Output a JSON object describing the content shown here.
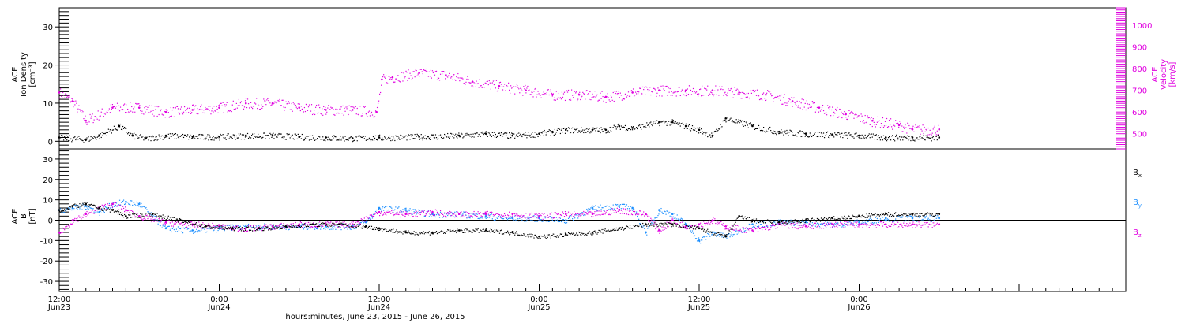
{
  "chart_data": [
    {
      "type": "scatter",
      "panel": "top",
      "ylabel_lines": [
        "ACE",
        "Ion Density",
        "[cm⁻³]"
      ],
      "ylabel_right_lines": [
        "ACE",
        "Velocity",
        "[km/s]"
      ],
      "ylim": [
        -2,
        35
      ],
      "yticks": [
        0,
        10,
        20,
        30
      ],
      "y2lim": [
        430,
        1080
      ],
      "y2ticks": [
        500,
        600,
        700,
        800,
        900,
        1000
      ],
      "series": [
        {
          "axis": "left",
          "color": "#000000",
          "x": [
            0,
            2,
            3,
            4.5,
            5.5,
            6.5,
            8,
            10,
            12,
            14,
            16,
            18,
            20,
            22,
            24,
            27,
            30,
            32,
            34,
            36,
            37,
            38,
            40,
            41,
            42,
            43,
            45,
            46,
            47,
            48,
            49,
            50,
            52,
            54,
            56,
            58,
            60,
            62,
            64,
            66
          ],
          "y": [
            1,
            0.5,
            1.5,
            4,
            1.5,
            0.8,
            1.5,
            1.2,
            1.2,
            1.5,
            1.5,
            1.2,
            1.0,
            0.8,
            1.0,
            1.2,
            1.5,
            2,
            1.5,
            2,
            2.5,
            3,
            3,
            3,
            4,
            3.5,
            5,
            5,
            4,
            3,
            1.5,
            6,
            4,
            2.5,
            2,
            1.8,
            1.5,
            1,
            1,
            1
          ]
        },
        {
          "axis": "right",
          "color": "#e000e0",
          "x": [
            0,
            1,
            2,
            4,
            6,
            8,
            10,
            12,
            14,
            16,
            18,
            20,
            22,
            23.8,
            24.2,
            25,
            27,
            29,
            31,
            33,
            35,
            37,
            39,
            41,
            43,
            45,
            47,
            49,
            51,
            53,
            55,
            57,
            59,
            61,
            63,
            64,
            66
          ],
          "y": [
            690,
            650,
            560,
            620,
            620,
            600,
            610,
            620,
            640,
            640,
            620,
            610,
            610,
            600,
            750,
            760,
            780,
            770,
            740,
            720,
            700,
            680,
            680,
            670,
            690,
            700,
            700,
            700,
            690,
            680,
            650,
            620,
            590,
            560,
            540,
            520,
            520
          ]
        }
      ]
    },
    {
      "type": "scatter",
      "panel": "bottom",
      "ylabel_lines": [
        "ACE",
        "B",
        "[nT]"
      ],
      "ylim": [
        -35,
        35
      ],
      "yticks": [
        -30,
        -20,
        -10,
        0,
        10,
        20,
        30
      ],
      "legend": [
        {
          "name": "B",
          "sub": "x",
          "color": "#000000"
        },
        {
          "name": "B",
          "sub": "y",
          "color": "#1e90ff"
        },
        {
          "name": "B",
          "sub": "z",
          "color": "#e000e0"
        }
      ],
      "series": [
        {
          "name": "Bx",
          "color": "#000000",
          "x": [
            0,
            1,
            2,
            3,
            4,
            5,
            7,
            9,
            11,
            13,
            15,
            17,
            19,
            21,
            23,
            24,
            26,
            28,
            30,
            32,
            34,
            36,
            38,
            40,
            42,
            44,
            46,
            48,
            50,
            51,
            52,
            54,
            56,
            58,
            60,
            62,
            64,
            66
          ],
          "y": [
            5,
            7,
            8,
            6,
            5,
            2,
            3,
            0,
            -3,
            -4,
            -4,
            -3,
            -2,
            -2,
            -3,
            -4,
            -6,
            -6,
            -5,
            -5,
            -6,
            -8,
            -7,
            -6,
            -4,
            -2,
            -2,
            -4,
            -8,
            2,
            0,
            -1,
            0,
            1,
            2,
            3,
            3,
            3
          ]
        },
        {
          "name": "By",
          "color": "#1e90ff",
          "x": [
            0,
            1,
            2,
            3,
            4,
            5,
            6,
            8,
            10,
            12,
            14,
            16,
            18,
            20,
            22,
            23,
            24,
            26,
            28,
            30,
            32,
            34,
            36,
            38,
            40,
            42,
            43,
            44,
            45,
            46,
            47,
            48,
            49,
            50,
            52,
            54,
            56,
            58,
            60,
            62,
            64,
            66
          ],
          "y": [
            5,
            6,
            7,
            4,
            8,
            9,
            8,
            -4,
            -5,
            -4,
            -3,
            -3,
            -3,
            -3,
            -3,
            -1,
            6,
            5,
            3,
            3,
            2,
            1,
            1,
            0,
            6,
            7,
            6,
            -6,
            5,
            3,
            -2,
            -10,
            -6,
            -8,
            -2,
            -1,
            -1,
            -2,
            -1,
            1,
            1,
            1
          ]
        },
        {
          "name": "Bz",
          "color": "#e000e0",
          "x": [
            0,
            1,
            2,
            3,
            4,
            5,
            6,
            8,
            10,
            12,
            14,
            16,
            18,
            20,
            22,
            24,
            26,
            28,
            30,
            32,
            34,
            36,
            38,
            40,
            42,
            44,
            45,
            46,
            47,
            48,
            49,
            50,
            52,
            54,
            56,
            58,
            60,
            62,
            64,
            66
          ],
          "y": [
            -6,
            0,
            3,
            6,
            8,
            5,
            2,
            -1,
            -2,
            -3,
            -4,
            -3,
            -2,
            -2,
            -2,
            4,
            3,
            4,
            3,
            3,
            3,
            2,
            3,
            3,
            5,
            3,
            -5,
            0,
            -3,
            -2,
            0,
            -3,
            -5,
            -2,
            -3,
            -2,
            -2,
            -2,
            -2,
            -2
          ]
        }
      ]
    }
  ],
  "xaxis": {
    "range_hours": [
      0,
      80
    ],
    "ticks": [
      {
        "h": 0,
        "time": "12:00",
        "date": "Jun23"
      },
      {
        "h": 12,
        "time": "0:00",
        "date": "Jun24"
      },
      {
        "h": 24,
        "time": "12:00",
        "date": "Jun24"
      },
      {
        "h": 36,
        "time": "0:00",
        "date": "Jun25"
      },
      {
        "h": 48,
        "time": "12:00",
        "date": "Jun25"
      },
      {
        "h": 60,
        "time": "0:00",
        "date": "Jun26"
      }
    ],
    "label": "hours:minutes, June 23, 2015 - June 26, 2015"
  }
}
